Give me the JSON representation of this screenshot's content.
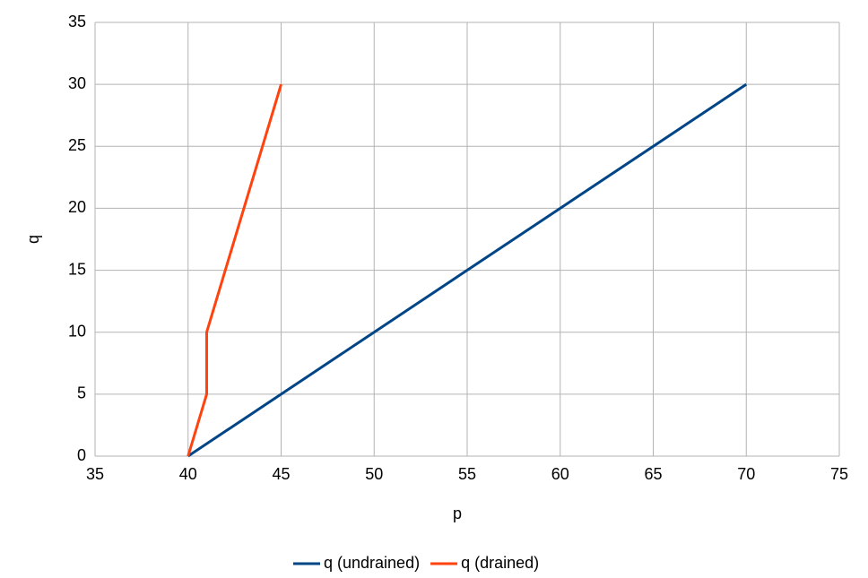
{
  "chart_data": {
    "type": "line",
    "x_label": "p",
    "y_label": "q",
    "series": [
      {
        "name": "q (undrained)",
        "color": "#004586",
        "x": [
          40,
          70
        ],
        "values": [
          0,
          30
        ]
      },
      {
        "name": "q (drained)",
        "color": "#ff420e",
        "x": [
          40,
          41,
          41,
          45
        ],
        "values": [
          0,
          5,
          10,
          30
        ]
      }
    ],
    "xlim": [
      35,
      75
    ],
    "xticks": [
      35,
      40,
      45,
      50,
      55,
      60,
      65,
      70,
      75
    ],
    "ylim": [
      0,
      35
    ],
    "yticks": [
      0,
      5,
      10,
      15,
      20,
      25,
      30,
      35
    ],
    "grid": true,
    "legend": "bottom"
  }
}
